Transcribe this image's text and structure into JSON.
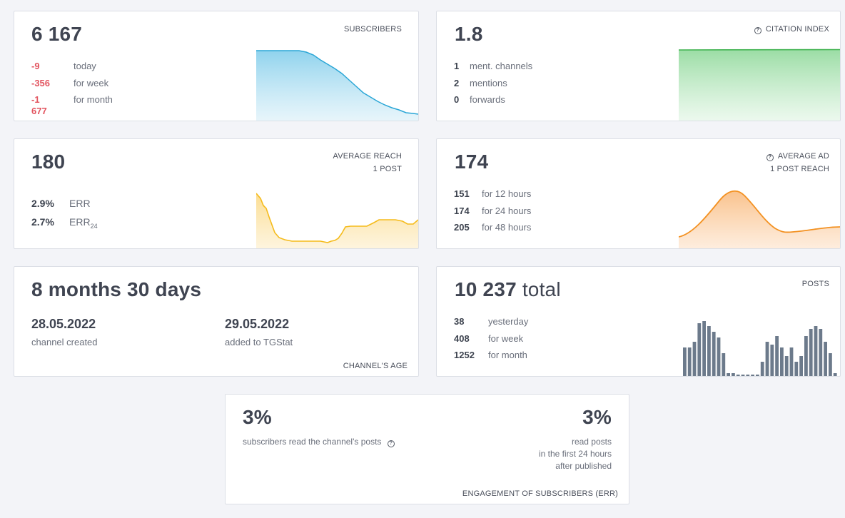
{
  "subscribers": {
    "value": "6 167",
    "caption": "SUBSCRIBERS",
    "stats": [
      {
        "num": "-9",
        "label": "today"
      },
      {
        "num": "-356",
        "label": "for week"
      },
      {
        "num": "-1 677",
        "label": "for month"
      }
    ],
    "color": "#2aa6d6"
  },
  "citation": {
    "value": "1.8",
    "caption": "CITATION INDEX",
    "help_icon": "question-circle-icon",
    "stats": [
      {
        "num": "1",
        "label": "ment. channels"
      },
      {
        "num": "2",
        "label": "mentions"
      },
      {
        "num": "0",
        "label": "forwards"
      }
    ],
    "color": "#3fb24f"
  },
  "reach": {
    "value": "180",
    "caption_line1": "AVERAGE REACH",
    "caption_line2": "1 POST",
    "err_value": "2.9%",
    "err_label": "ERR",
    "err24_value": "2.7%",
    "err24_label": "ERR",
    "err24_sub": "24",
    "color": "#f5bb1a"
  },
  "ad_reach": {
    "value": "174",
    "caption_line1": "AVERAGE AD",
    "caption_line2": "1 POST REACH",
    "help_icon": "question-circle-icon",
    "stats": [
      {
        "num": "151",
        "label": "for 12 hours"
      },
      {
        "num": "174",
        "label": "for 24 hours"
      },
      {
        "num": "205",
        "label": "for 48 hours"
      }
    ],
    "color": "#f39121"
  },
  "age": {
    "value": "8 months 30 days",
    "created_date": "28.05.2022",
    "created_label": "channel created",
    "added_date": "29.05.2022",
    "added_label": "added to TGStat",
    "caption": "CHANNEL'S AGE"
  },
  "posts": {
    "value": "10 237",
    "value_suffix": "total",
    "caption": "POSTS",
    "stats": [
      {
        "num": "38",
        "label": "yesterday"
      },
      {
        "num": "408",
        "label": "for week"
      },
      {
        "num": "1252",
        "label": "for month"
      }
    ],
    "color": "#6c7a8b"
  },
  "engagement": {
    "left_value": "3%",
    "left_label": "subscribers read the channel's posts",
    "help_icon": "question-circle-icon",
    "right_value": "3%",
    "right_line1": "read posts",
    "right_line2": "in the first 24 hours",
    "right_line3": "after published",
    "caption": "ENGAGEMENT OF SUBSCRIBERS (ERR)"
  }
}
